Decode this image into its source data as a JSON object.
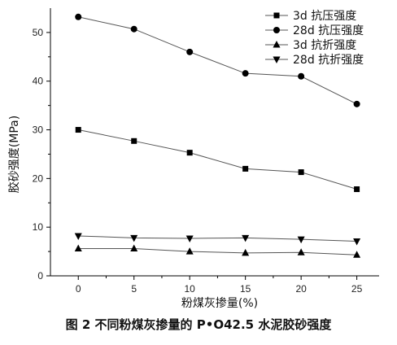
{
  "caption": "图 2   不同粉煤灰掺量的 P•O42.5 水泥胶砂强度",
  "chart_data": {
    "type": "line",
    "title": "",
    "xlabel": "粉煤灰掺量(%)",
    "ylabel": "胶砂强度(MPa)",
    "x": [
      0,
      5,
      10,
      15,
      20,
      25
    ],
    "xticks": [
      "0",
      "5",
      "10",
      "15",
      "20",
      "25"
    ],
    "yticks": [
      "0",
      "10",
      "20",
      "30",
      "40",
      "50"
    ],
    "xlim": [
      -2.5,
      27
    ],
    "ylim": [
      0,
      55
    ],
    "grid": false,
    "legend_position": "top-right",
    "series": [
      {
        "name": "3d 抗压强度",
        "marker": "square",
        "values": [
          30.0,
          27.7,
          25.3,
          22.0,
          21.3,
          17.8
        ]
      },
      {
        "name": "28d 抗压强度",
        "marker": "circle",
        "values": [
          53.2,
          50.7,
          46.0,
          41.6,
          41.0,
          35.3
        ]
      },
      {
        "name": "3d 抗折强度",
        "marker": "triangle-up",
        "values": [
          5.6,
          5.6,
          5.0,
          4.7,
          4.8,
          4.3
        ]
      },
      {
        "name": "28d 抗折强度",
        "marker": "triangle-down",
        "values": [
          8.2,
          7.8,
          7.7,
          7.8,
          7.5,
          7.1
        ]
      }
    ]
  }
}
